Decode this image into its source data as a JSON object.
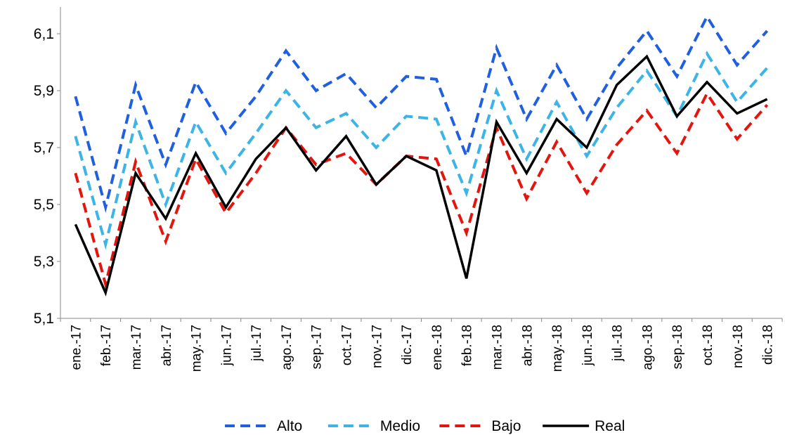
{
  "chart_data": {
    "type": "line",
    "title": "",
    "xlabel": "",
    "ylabel": "",
    "ylim": [
      5.1,
      6.2
    ],
    "yticks": [
      "5,1",
      "5,3",
      "5,5",
      "5,7",
      "5,9",
      "6,1"
    ],
    "ytick_values": [
      5.1,
      5.3,
      5.5,
      5.7,
      5.9,
      6.1
    ],
    "grid": false,
    "legend_position": "bottom",
    "categories": [
      "ene.-17",
      "feb.-17",
      "mar.-17",
      "abr.-17",
      "may.-17",
      "jun.-17",
      "jul.-17",
      "ago.-17",
      "sep.-17",
      "oct.-17",
      "nov.-17",
      "dic.-17",
      "ene.-18",
      "feb.-18",
      "mar.-18",
      "abr.-18",
      "may.-18",
      "jun.-18",
      "jul.-18",
      "ago.-18",
      "sep.-18",
      "oct.-18",
      "nov.-18",
      "dic.-18"
    ],
    "series": [
      {
        "name": "Alto",
        "color": "#1f5fe0",
        "dash": "dashed",
        "values": [
          5.88,
          5.49,
          5.92,
          5.64,
          5.93,
          5.75,
          5.88,
          6.04,
          5.9,
          5.96,
          5.84,
          5.95,
          5.94,
          5.67,
          6.05,
          5.8,
          5.99,
          5.8,
          5.98,
          6.11,
          5.95,
          6.16,
          5.99,
          6.11
        ]
      },
      {
        "name": "Medio",
        "color": "#3cb4e6",
        "dash": "dashed",
        "values": [
          5.74,
          5.36,
          5.79,
          5.5,
          5.79,
          5.61,
          5.75,
          5.9,
          5.77,
          5.82,
          5.7,
          5.81,
          5.8,
          5.54,
          5.9,
          5.66,
          5.86,
          5.67,
          5.84,
          5.97,
          5.81,
          6.03,
          5.86,
          5.98
        ]
      },
      {
        "name": "Bajo",
        "color": "#e3160f",
        "dash": "dashed",
        "values": [
          5.61,
          5.22,
          5.65,
          5.37,
          5.66,
          5.47,
          5.61,
          5.77,
          5.64,
          5.68,
          5.57,
          5.67,
          5.66,
          5.4,
          5.77,
          5.52,
          5.72,
          5.54,
          5.71,
          5.83,
          5.68,
          5.89,
          5.73,
          5.85
        ]
      },
      {
        "name": "Real",
        "color": "#000000",
        "dash": "solid",
        "values": [
          5.43,
          5.19,
          5.61,
          5.45,
          5.68,
          5.49,
          5.66,
          5.77,
          5.62,
          5.74,
          5.57,
          5.67,
          5.62,
          5.24,
          5.79,
          5.61,
          5.8,
          5.7,
          5.92,
          6.02,
          5.81,
          5.93,
          5.82,
          5.87
        ]
      }
    ]
  }
}
